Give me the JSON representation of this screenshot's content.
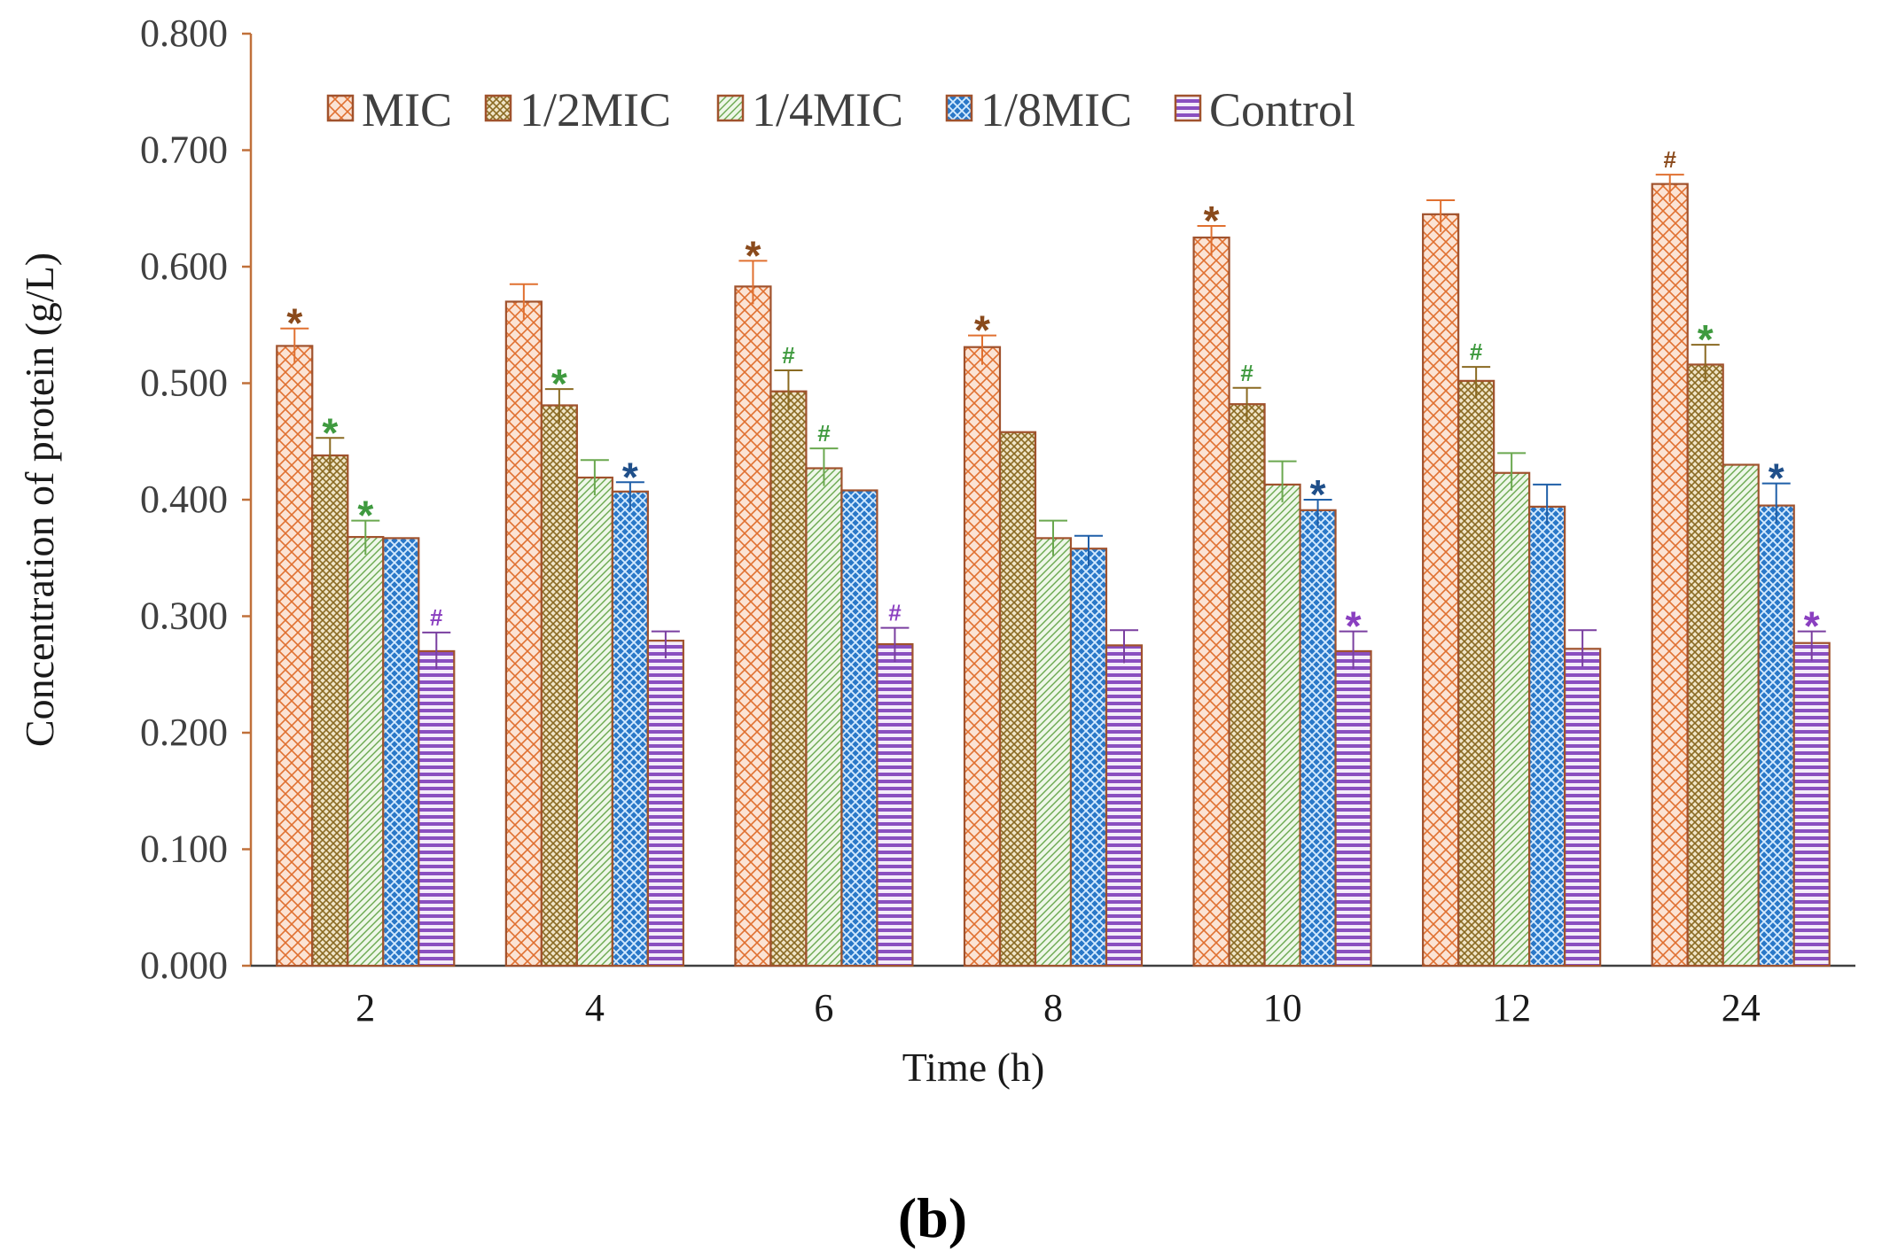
{
  "chart_data": {
    "type": "bar",
    "title": "",
    "xlabel": "Time (h)",
    "ylabel": "Concentration of protein (g/L)",
    "categories": [
      "2",
      "4",
      "6",
      "8",
      "10",
      "12",
      "24"
    ],
    "ylim": [
      0,
      0.8
    ],
    "yticks": [
      "0.000",
      "0.100",
      "0.200",
      "0.300",
      "0.400",
      "0.500",
      "0.600",
      "0.700",
      "0.800"
    ],
    "legend_position": "top-left",
    "grid": false,
    "panel_label": "(b)",
    "series": [
      {
        "name": "MIC",
        "color": "#e07030",
        "fill": "#fbe3d4",
        "pattern": "crosshatch",
        "values": [
          0.532,
          0.57,
          0.583,
          0.531,
          0.625,
          0.645,
          0.671
        ],
        "errors": [
          0.015,
          0.015,
          0.022,
          0.01,
          0.01,
          0.012,
          0.008
        ],
        "markers": [
          "*",
          "",
          "*",
          "*",
          "*",
          "",
          "#"
        ],
        "marker_color": "#8a4a1c"
      },
      {
        "name": "1/2MIC",
        "color": "#8a6a22",
        "fill": "#efe4c6",
        "pattern": "dense-check",
        "values": [
          0.438,
          0.481,
          0.493,
          0.458,
          0.482,
          0.502,
          0.516
        ],
        "errors": [
          0.015,
          0.014,
          0.018,
          0.0,
          0.014,
          0.012,
          0.017
        ],
        "markers": [
          "*",
          "*",
          "#",
          "",
          "#",
          "#",
          "*"
        ],
        "marker_color": "#3f9a3f"
      },
      {
        "name": "1/4MIC",
        "color": "#6aa84f",
        "fill": "#e4f1dc",
        "pattern": "diagonal",
        "values": [
          0.368,
          0.419,
          0.427,
          0.367,
          0.413,
          0.423,
          0.43
        ],
        "errors": [
          0.014,
          0.015,
          0.017,
          0.015,
          0.02,
          0.017,
          0.0
        ],
        "markers": [
          "*",
          "",
          "#",
          "",
          "",
          "",
          ""
        ],
        "marker_color": "#3f9a3f"
      },
      {
        "name": "1/8MIC",
        "color": "#1f5fa8",
        "fill": "#d0e6f8",
        "pattern": "lattice",
        "values": [
          0.367,
          0.407,
          0.408,
          0.358,
          0.391,
          0.394,
          0.395
        ],
        "errors": [
          0.0,
          0.008,
          0.0,
          0.011,
          0.009,
          0.019,
          0.019
        ],
        "markers": [
          "",
          "*",
          "",
          "",
          "*",
          "",
          "*"
        ],
        "marker_color": "#1f4f8a"
      },
      {
        "name": "Control",
        "color": "#7a3fa0",
        "fill": "#e8d8f2",
        "pattern": "horizontal",
        "values": [
          0.27,
          0.279,
          0.276,
          0.275,
          0.27,
          0.272,
          0.277
        ],
        "errors": [
          0.016,
          0.008,
          0.014,
          0.013,
          0.017,
          0.016,
          0.01
        ],
        "markers": [
          "#",
          "",
          "#",
          "",
          "*",
          "",
          "*"
        ],
        "marker_color": "#8a3fc0"
      }
    ]
  }
}
